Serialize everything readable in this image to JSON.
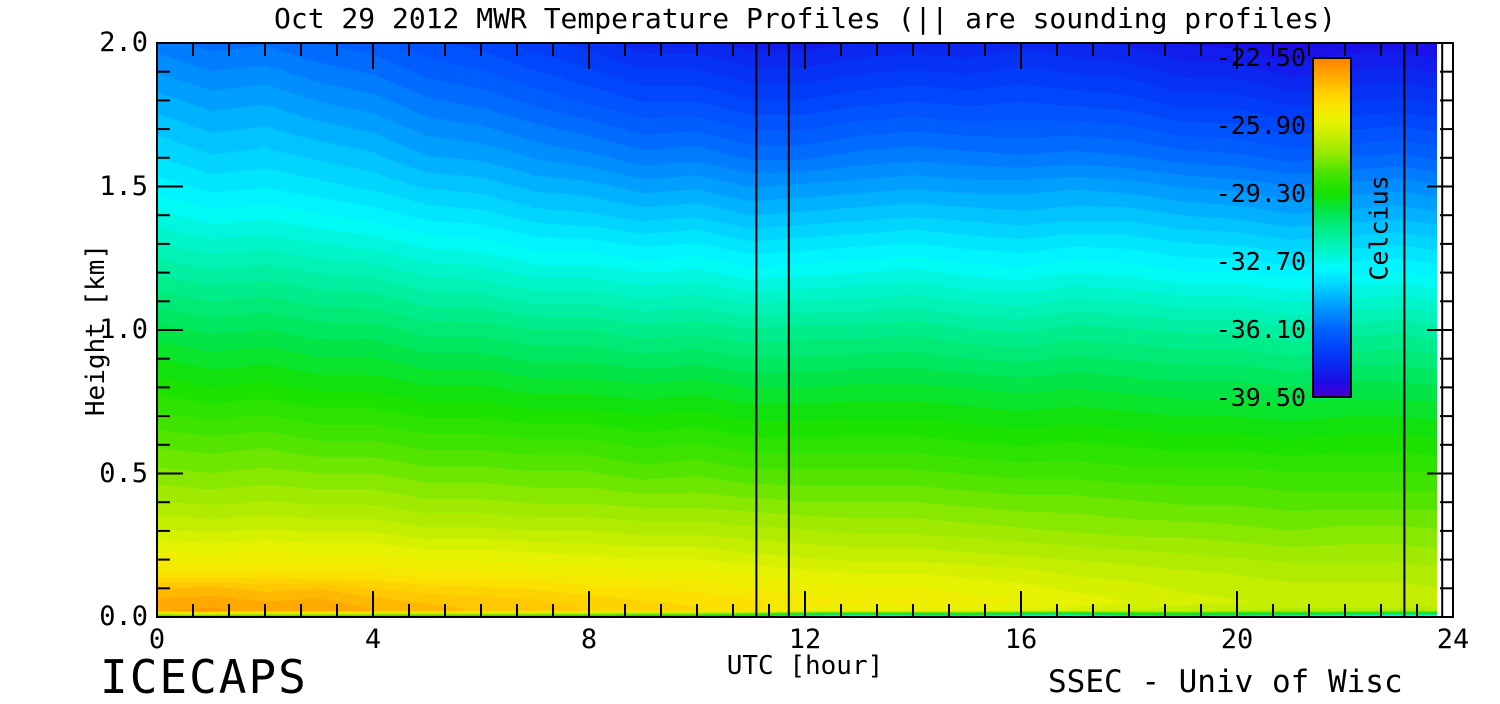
{
  "title": "Oct 29 2012 MWR Temperature Profiles (|| are sounding profiles)",
  "footer": {
    "left": "ICECAPS",
    "right": "SSEC - Univ of Wisc"
  },
  "axes": {
    "x": {
      "label": "UTC [hour]",
      "range": [
        0,
        24
      ],
      "major_tick_labels": [
        "0",
        "4",
        "8",
        "12",
        "16",
        "20",
        "24"
      ],
      "major_tick_hours": [
        0,
        4,
        8,
        12,
        16,
        20,
        24
      ],
      "minor_step_hours": 0.6667
    },
    "y": {
      "label": "Height [km]",
      "range": [
        0,
        2
      ],
      "major_tick_labels": [
        "0.0",
        "0.5",
        "1.0",
        "1.5",
        "2.0"
      ],
      "major_tick_km": [
        0,
        0.5,
        1.0,
        1.5,
        2.0
      ],
      "minor_step_km": 0.1
    }
  },
  "colorbar": {
    "title": "Celcius",
    "tick_labels": [
      "-22.50",
      "-25.90",
      "-29.30",
      "-32.70",
      "-36.10",
      "-39.50"
    ],
    "max_c": -22.5,
    "min_c": -39.5
  },
  "chart_data": {
    "type": "heatmap",
    "title": "Oct 29 2012 MWR Temperature Profiles (|| are sounding profiles)",
    "xlabel": "UTC [hour]",
    "ylabel": "Height [km]",
    "units": "Celcius",
    "x_range_hours": [
      0,
      24
    ],
    "y_range_km": [
      0,
      2
    ],
    "data_end_hour": 23.7,
    "sounding_lines_utc": [
      11.1,
      11.7,
      23.1,
      23.8
    ],
    "contour_step_c": 0.34,
    "x_hours": [
      0,
      1,
      2,
      3,
      4,
      5,
      6,
      7,
      8,
      9,
      10,
      11,
      12,
      13,
      14,
      15,
      16,
      17,
      18,
      19,
      20,
      21,
      22,
      23,
      24
    ],
    "heights_km": [
      2.0,
      1.8,
      1.6,
      1.5,
      1.4,
      1.2,
      1.0,
      0.8,
      0.6,
      0.5,
      0.4,
      0.3,
      0.2,
      0.15,
      0.1,
      0.05,
      0.02,
      0.0
    ],
    "temperature_c": [
      [
        -35.6,
        -35.9,
        -35.8,
        -36.1,
        -36.3,
        -36.7,
        -36.9,
        -37.3,
        -37.6,
        -38.0,
        -38.0,
        -38.3,
        -38.3,
        -38.1,
        -38.0,
        -38.1,
        -37.9,
        -38.1,
        -38.2,
        -38.5,
        -38.6,
        -38.9,
        -38.7,
        -38.6,
        -38.9
      ],
      [
        -34.6,
        -34.9,
        -34.8,
        -35.1,
        -35.3,
        -35.7,
        -35.9,
        -36.2,
        -36.5,
        -36.8,
        -36.8,
        -37.1,
        -37.1,
        -36.9,
        -36.8,
        -36.9,
        -36.8,
        -36.9,
        -37.0,
        -37.3,
        -37.3,
        -37.6,
        -37.5,
        -37.4,
        -37.6
      ],
      [
        -33.7,
        -34.0,
        -33.9,
        -34.1,
        -34.3,
        -34.7,
        -34.8,
        -35.1,
        -35.3,
        -35.6,
        -35.5,
        -35.8,
        -35.8,
        -35.6,
        -35.5,
        -35.6,
        -35.7,
        -35.6,
        -35.7,
        -35.9,
        -36.0,
        -36.2,
        -36.1,
        -36.0,
        -36.2
      ],
      [
        -33.2,
        -33.5,
        -33.4,
        -33.6,
        -33.8,
        -34.1,
        -34.2,
        -34.5,
        -34.6,
        -34.9,
        -34.8,
        -35.1,
        -35.0,
        -34.9,
        -34.8,
        -34.9,
        -34.9,
        -34.8,
        -34.9,
        -35.1,
        -35.2,
        -35.4,
        -35.3,
        -35.2,
        -35.4
      ],
      [
        -32.6,
        -32.9,
        -32.8,
        -33.0,
        -33.2,
        -33.5,
        -33.6,
        -33.9,
        -34.0,
        -34.2,
        -34.1,
        -34.4,
        -34.3,
        -34.2,
        -34.1,
        -34.2,
        -34.3,
        -34.2,
        -34.2,
        -34.4,
        -34.5,
        -34.7,
        -34.6,
        -34.5,
        -34.7
      ],
      [
        -31.4,
        -31.6,
        -31.5,
        -31.7,
        -31.8,
        -32.1,
        -32.2,
        -32.5,
        -32.5,
        -32.7,
        -32.6,
        -32.9,
        -32.8,
        -32.7,
        -32.6,
        -32.8,
        -32.9,
        -32.7,
        -32.8,
        -33.0,
        -33.0,
        -33.2,
        -33.1,
        -33.0,
        -33.2
      ],
      [
        -30.2,
        -30.4,
        -30.3,
        -30.5,
        -30.5,
        -30.8,
        -30.8,
        -31.0,
        -31.0,
        -31.2,
        -31.1,
        -31.3,
        -31.2,
        -31.2,
        -31.1,
        -31.3,
        -31.4,
        -31.2,
        -31.3,
        -31.4,
        -31.4,
        -31.6,
        -31.5,
        -31.4,
        -31.6
      ],
      [
        -29.1,
        -29.3,
        -29.2,
        -29.4,
        -29.4,
        -29.6,
        -29.6,
        -29.8,
        -29.8,
        -29.9,
        -29.8,
        -30.0,
        -30.0,
        -29.9,
        -29.9,
        -30.0,
        -30.1,
        -30.0,
        -30.1,
        -30.2,
        -30.2,
        -30.3,
        -30.2,
        -30.2,
        -30.3
      ],
      [
        -28.0,
        -28.1,
        -28.0,
        -28.2,
        -28.2,
        -28.4,
        -28.4,
        -28.5,
        -28.5,
        -28.7,
        -28.6,
        -28.8,
        -28.8,
        -28.8,
        -28.8,
        -28.9,
        -29.0,
        -28.9,
        -29.0,
        -29.1,
        -29.1,
        -29.2,
        -29.1,
        -29.1,
        -29.2
      ],
      [
        -27.5,
        -27.6,
        -27.5,
        -27.6,
        -27.6,
        -27.8,
        -27.8,
        -27.9,
        -27.9,
        -28.1,
        -28.0,
        -28.2,
        -28.2,
        -28.2,
        -28.2,
        -28.3,
        -28.4,
        -28.4,
        -28.5,
        -28.5,
        -28.5,
        -28.6,
        -28.6,
        -28.6,
        -28.6
      ],
      [
        -26.9,
        -27.0,
        -26.9,
        -27.0,
        -27.0,
        -27.2,
        -27.2,
        -27.3,
        -27.3,
        -27.4,
        -27.4,
        -27.5,
        -27.6,
        -27.6,
        -27.6,
        -27.7,
        -27.8,
        -27.8,
        -27.9,
        -28.0,
        -28.0,
        -28.1,
        -28.1,
        -28.1,
        -28.1
      ],
      [
        -26.2,
        -26.3,
        -26.2,
        -26.3,
        -26.3,
        -26.5,
        -26.5,
        -26.6,
        -26.6,
        -26.7,
        -26.7,
        -26.8,
        -26.9,
        -27.0,
        -27.0,
        -27.1,
        -27.2,
        -27.3,
        -27.4,
        -27.4,
        -27.5,
        -27.6,
        -27.5,
        -27.5,
        -27.6
      ],
      [
        -25.3,
        -25.4,
        -25.3,
        -25.4,
        -25.4,
        -25.6,
        -25.6,
        -25.7,
        -25.8,
        -25.9,
        -25.9,
        -26.1,
        -26.2,
        -26.3,
        -26.3,
        -26.4,
        -26.5,
        -26.6,
        -26.7,
        -26.8,
        -26.9,
        -27.0,
        -27.0,
        -27.0,
        -27.1
      ],
      [
        -24.8,
        -24.9,
        -24.8,
        -24.9,
        -24.9,
        -25.1,
        -25.1,
        -25.2,
        -25.3,
        -25.4,
        -25.4,
        -25.6,
        -25.8,
        -25.9,
        -25.9,
        -26.0,
        -26.1,
        -26.3,
        -26.4,
        -26.5,
        -26.6,
        -26.7,
        -26.7,
        -26.7,
        -26.8
      ],
      [
        -23.9,
        -23.8,
        -24.0,
        -23.9,
        -24.2,
        -24.4,
        -24.5,
        -24.6,
        -24.8,
        -24.9,
        -25.0,
        -25.2,
        -25.4,
        -25.5,
        -25.5,
        -25.7,
        -25.8,
        -26.0,
        -26.1,
        -26.3,
        -26.4,
        -26.5,
        -26.5,
        -26.5,
        -26.6
      ],
      [
        -23.4,
        -23.3,
        -23.5,
        -23.4,
        -23.7,
        -23.9,
        -24.0,
        -24.1,
        -24.3,
        -24.5,
        -24.6,
        -24.8,
        -25.1,
        -25.2,
        -25.2,
        -25.4,
        -25.5,
        -25.7,
        -25.9,
        -26.1,
        -26.2,
        -26.3,
        -26.3,
        -26.3,
        -26.4
      ],
      [
        -23.2,
        -23.1,
        -23.3,
        -23.2,
        -23.5,
        -23.7,
        -23.9,
        -24.0,
        -24.2,
        -24.4,
        -24.5,
        -24.8,
        -25.3,
        -25.5,
        -25.5,
        -25.7,
        -25.9,
        -26.1,
        -26.3,
        -26.5,
        -26.6,
        -26.7,
        -26.7,
        -26.7,
        -26.8
      ],
      [
        -29.0,
        -28.8,
        -29.2,
        -29.0,
        -29.3,
        -29.4,
        -29.5,
        -29.5,
        -29.8,
        -30.0,
        -30.2,
        -31.0,
        -32.8,
        -33.6,
        -33.0,
        -32.2,
        -34.0,
        -33.6,
        -32.0,
        -31.6,
        -32.2,
        -32.6,
        -33.2,
        -34.2,
        -34.2
      ]
    ],
    "colormap": [
      [
        0.0,
        "#4600d2"
      ],
      [
        0.04,
        "#1e0ae6"
      ],
      [
        0.09,
        "#0a28f0"
      ],
      [
        0.14,
        "#0041fa"
      ],
      [
        0.2,
        "#0064ff"
      ],
      [
        0.26,
        "#0096ff"
      ],
      [
        0.31,
        "#00c3ff"
      ],
      [
        0.35,
        "#00e6ff"
      ],
      [
        0.38,
        "#00fbff"
      ],
      [
        0.43,
        "#00f5c8"
      ],
      [
        0.48,
        "#00ee96"
      ],
      [
        0.54,
        "#00e655"
      ],
      [
        0.6,
        "#14e100"
      ],
      [
        0.66,
        "#46e400"
      ],
      [
        0.72,
        "#96e900"
      ],
      [
        0.77,
        "#c3ee00"
      ],
      [
        0.81,
        "#e6f300"
      ],
      [
        0.86,
        "#fae600"
      ],
      [
        0.91,
        "#ffc800"
      ],
      [
        0.96,
        "#ffa000"
      ],
      [
        1.0,
        "#ff8200"
      ]
    ]
  }
}
